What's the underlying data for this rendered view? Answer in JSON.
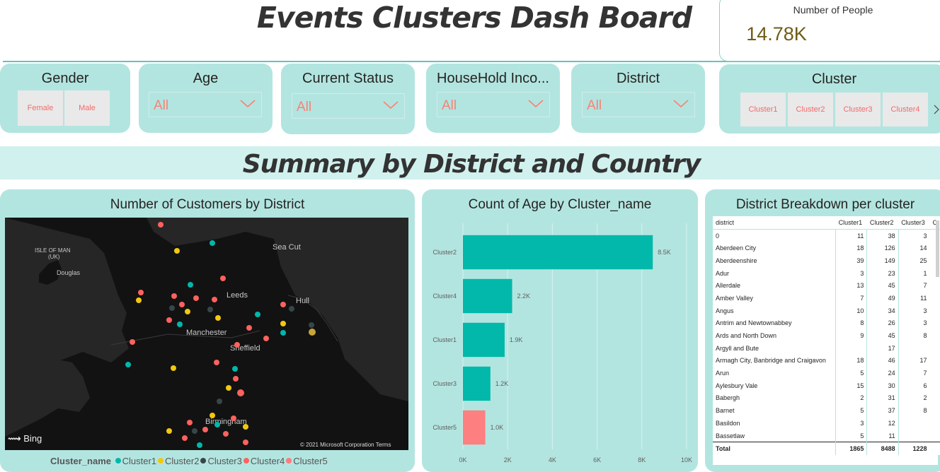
{
  "header": {
    "title": "Events Clusters Dash Board",
    "kpi_label": "Number of People",
    "kpi_value": "14.78K"
  },
  "slicers": {
    "gender": {
      "title": "Gender",
      "options": [
        "Female",
        "Male"
      ]
    },
    "age": {
      "title": "Age",
      "value": "All"
    },
    "current_status": {
      "title": "Current Status",
      "value": "All"
    },
    "household_income": {
      "title": "HouseHold Inco...",
      "value": "All"
    },
    "district": {
      "title": "District",
      "value": "All"
    },
    "cluster": {
      "title": "Cluster",
      "options": [
        "Cluster1",
        "Cluster2",
        "Cluster3",
        "Cluster4"
      ]
    }
  },
  "section_title": "Summary by District and Country",
  "map_card": {
    "title": "Number of Customers by District",
    "labels": [
      "ISLE OF MAN",
      "(UK)",
      "Douglas",
      "Sea Cut",
      "Leeds",
      "Hull",
      "Manchester",
      "Sheffield",
      "Birmingham"
    ],
    "bing": "Bing",
    "copyright": "© 2021 Microsoft Corporation",
    "terms": "Terms",
    "legend_title": "Cluster_name",
    "legend": [
      {
        "name": "Cluster1",
        "color": "#01b8aa"
      },
      {
        "name": "Cluster2",
        "color": "#f2c80f"
      },
      {
        "name": "Cluster3",
        "color": "#374649"
      },
      {
        "name": "Cluster4",
        "color": "#fd625e"
      },
      {
        "name": "Cluster5",
        "color": "#ff7a7a"
      }
    ]
  },
  "chart_card": {
    "title": "Count of Age by Cluster_name"
  },
  "chart_data": {
    "type": "bar",
    "title": "Count of Age by Cluster_name",
    "orientation": "horizontal",
    "categories": [
      "Cluster2",
      "Cluster4",
      "Cluster1",
      "Cluster3",
      "Cluster5"
    ],
    "values": [
      8488,
      2200,
      1865,
      1228,
      1000
    ],
    "data_labels": [
      "8.5K",
      "2.2K",
      "1.9K",
      "1.2K",
      "1.0K"
    ],
    "colors": [
      "#01b8aa",
      "#01b8aa",
      "#01b8aa",
      "#01b8aa",
      "#fd7f7f"
    ],
    "xlim": [
      0,
      10000
    ],
    "xticks": [
      "0K",
      "2K",
      "4K",
      "6K",
      "8K",
      "10K"
    ],
    "grid": true
  },
  "table_card": {
    "title": "District Breakdown per cluster",
    "columns": [
      "district",
      "Cluster1",
      "Cluster2",
      "Cluster3",
      "C"
    ],
    "rows": [
      [
        "0",
        "11",
        "38",
        "3"
      ],
      [
        "Aberdeen City",
        "18",
        "126",
        "14"
      ],
      [
        "Aberdeenshire",
        "39",
        "149",
        "25"
      ],
      [
        "Adur",
        "3",
        "23",
        "1"
      ],
      [
        "Allerdale",
        "13",
        "45",
        "7"
      ],
      [
        "Amber Valley",
        "7",
        "49",
        "11"
      ],
      [
        "Angus",
        "10",
        "34",
        "3"
      ],
      [
        "Antrim and Newtownabbey",
        "8",
        "26",
        "3"
      ],
      [
        "Ards and North Down",
        "9",
        "45",
        "8"
      ],
      [
        "Argyll and Bute",
        "",
        "17",
        ""
      ],
      [
        "Armagh City, Banbridge and Craigavon",
        "18",
        "46",
        "17"
      ],
      [
        "Arun",
        "5",
        "24",
        "7"
      ],
      [
        "Aylesbury Vale",
        "15",
        "30",
        "6"
      ],
      [
        "Babergh",
        "2",
        "31",
        "2"
      ],
      [
        "Barnet",
        "5",
        "37",
        "8"
      ],
      [
        "Basildon",
        "3",
        "12",
        ""
      ],
      [
        "Bassetlaw",
        "5",
        "11",
        ""
      ]
    ],
    "total": [
      "Total",
      "1865",
      "8488",
      "1228"
    ]
  }
}
